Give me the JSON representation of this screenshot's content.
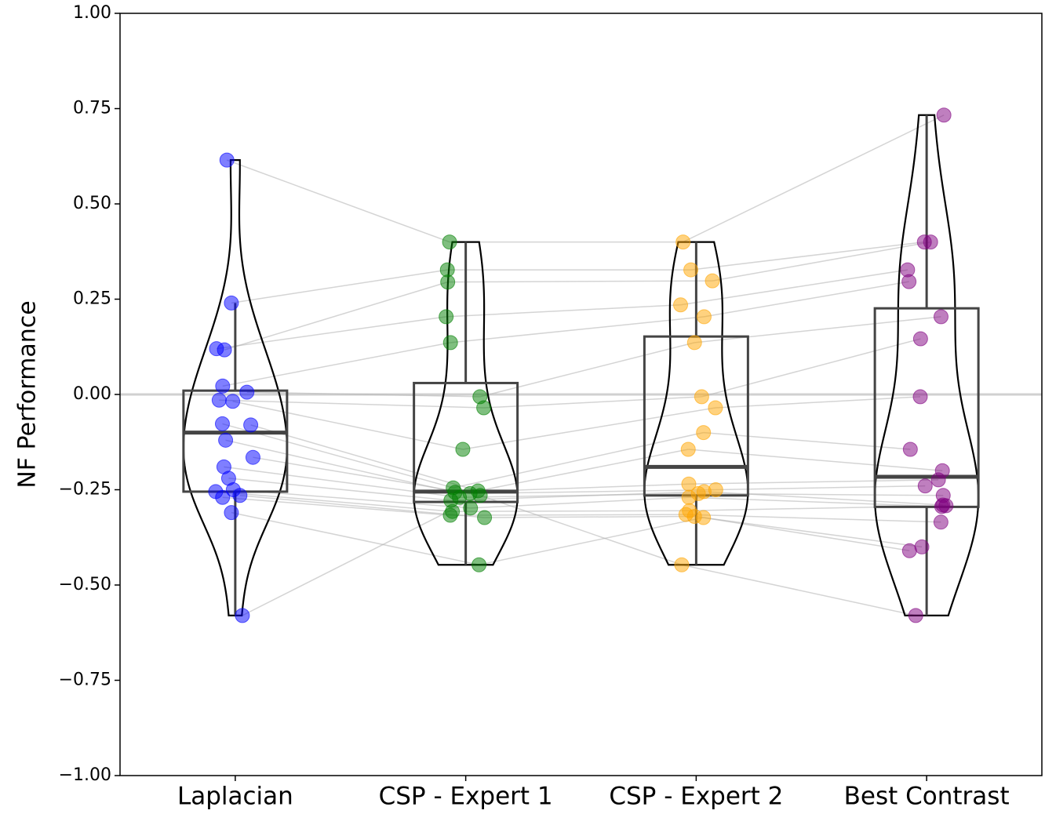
{
  "chart_data": {
    "type": "violin",
    "y_label": "NF Performance",
    "ylim": [
      -1.0,
      1.0
    ],
    "yticks": [
      {
        "value": -1.0,
        "label": "−1.00"
      },
      {
        "value": -0.75,
        "label": "−0.75"
      },
      {
        "value": -0.5,
        "label": "−0.50"
      },
      {
        "value": -0.25,
        "label": "−0.25"
      },
      {
        "value": 0.0,
        "label": "0.00"
      },
      {
        "value": 0.25,
        "label": "0.25"
      },
      {
        "value": 0.5,
        "label": "0.50"
      },
      {
        "value": 0.75,
        "label": "0.75"
      },
      {
        "value": 1.0,
        "label": "1.00"
      }
    ],
    "reference_line": 0,
    "paired_lines": true,
    "series": [
      {
        "name": "Laplacian",
        "color": "#0000ff",
        "values": [
          0.615,
          0.24,
          0.117,
          0.12,
          0.022,
          0.006,
          -0.015,
          -0.018,
          -0.077,
          -0.08,
          -0.12,
          -0.165,
          -0.19,
          -0.22,
          -0.25,
          -0.255,
          -0.27,
          -0.265,
          -0.31,
          -0.58
        ],
        "box": {
          "whisker_low": -0.58,
          "q1": -0.255,
          "median": -0.1,
          "q3": 0.01,
          "whisker_high": 0.24
        }
      },
      {
        "name": "CSP - Expert 1",
        "color": "#008000",
        "values": [
          0.4,
          0.327,
          0.295,
          0.204,
          0.136,
          -0.006,
          -0.035,
          -0.144,
          -0.245,
          -0.253,
          -0.257,
          -0.26,
          -0.27,
          -0.278,
          -0.298,
          -0.307,
          -0.317,
          -0.323,
          -0.447,
          -0.265
        ],
        "box": {
          "whisker_low": -0.447,
          "q1": -0.282,
          "median": -0.255,
          "q3": 0.03,
          "whisker_high": 0.4
        }
      },
      {
        "name": "CSP - Expert 2",
        "color": "#ffa500",
        "values": [
          0.4,
          0.327,
          0.298,
          0.235,
          0.204,
          0.136,
          -0.006,
          -0.035,
          -0.1,
          -0.144,
          -0.235,
          -0.25,
          -0.26,
          -0.255,
          -0.27,
          -0.305,
          -0.315,
          -0.32,
          -0.323,
          -0.447
        ],
        "box": {
          "whisker_low": -0.447,
          "q1": -0.265,
          "median": -0.19,
          "q3": 0.152,
          "whisker_high": 0.4
        }
      },
      {
        "name": "Best Contrast",
        "color": "#800080",
        "values": [
          0.733,
          0.4,
          0.4,
          0.327,
          0.296,
          0.204,
          0.146,
          -0.006,
          -0.144,
          -0.2,
          -0.224,
          -0.24,
          -0.265,
          -0.29,
          -0.294,
          -0.292,
          -0.335,
          -0.4,
          -0.41,
          -0.58
        ],
        "box": {
          "whisker_low": -0.58,
          "q1": -0.295,
          "median": -0.216,
          "q3": 0.226,
          "whisker_high": 0.733
        }
      }
    ]
  }
}
